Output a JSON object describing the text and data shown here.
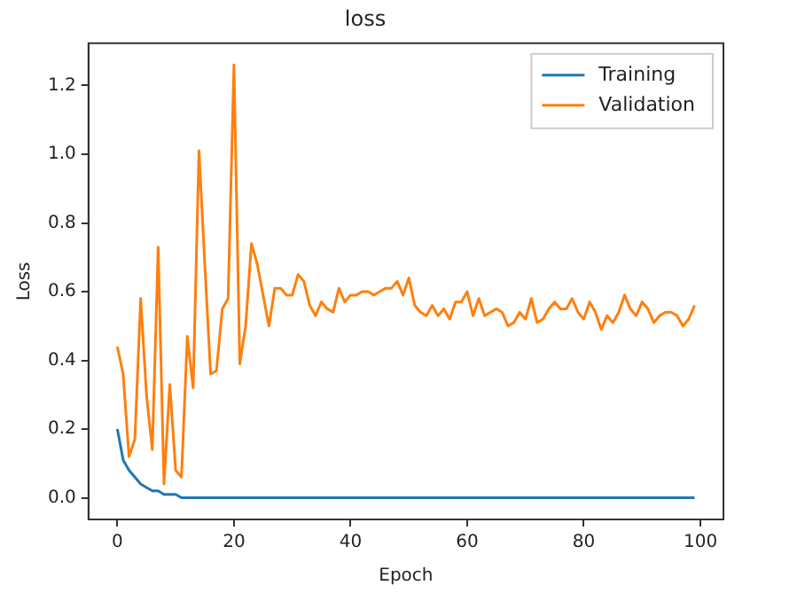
{
  "chart_data": {
    "type": "line",
    "title": "loss",
    "xlabel": "Epoch",
    "ylabel": "Loss",
    "x": [
      0,
      1,
      2,
      3,
      4,
      5,
      6,
      7,
      8,
      9,
      10,
      11,
      12,
      13,
      14,
      15,
      16,
      17,
      18,
      19,
      20,
      21,
      22,
      23,
      24,
      25,
      26,
      27,
      28,
      29,
      30,
      31,
      32,
      33,
      34,
      35,
      36,
      37,
      38,
      39,
      40,
      41,
      42,
      43,
      44,
      45,
      46,
      47,
      48,
      49,
      50,
      51,
      52,
      53,
      54,
      55,
      56,
      57,
      58,
      59,
      60,
      61,
      62,
      63,
      64,
      65,
      66,
      67,
      68,
      69,
      70,
      71,
      72,
      73,
      74,
      75,
      76,
      77,
      78,
      79,
      80,
      81,
      82,
      83,
      84,
      85,
      86,
      87,
      88,
      89,
      90,
      91,
      92,
      93,
      94,
      95,
      96,
      97,
      98,
      99
    ],
    "series": [
      {
        "name": "Training",
        "color": "#1f77b4",
        "values": [
          0.2,
          0.11,
          0.08,
          0.06,
          0.04,
          0.03,
          0.02,
          0.02,
          0.01,
          0.01,
          0.01,
          0,
          0,
          0,
          0,
          0,
          0,
          0,
          0,
          0,
          0,
          0,
          0,
          0,
          0,
          0,
          0,
          0,
          0,
          0,
          0,
          0,
          0,
          0,
          0,
          0,
          0,
          0,
          0,
          0,
          0,
          0,
          0,
          0,
          0,
          0,
          0,
          0,
          0,
          0,
          0,
          0,
          0,
          0,
          0,
          0,
          0,
          0,
          0,
          0,
          0,
          0,
          0,
          0,
          0,
          0,
          0,
          0,
          0,
          0,
          0,
          0,
          0,
          0,
          0,
          0,
          0,
          0,
          0,
          0,
          0,
          0,
          0,
          0,
          0,
          0,
          0,
          0,
          0,
          0,
          0,
          0,
          0,
          0,
          0,
          0,
          0,
          0,
          0,
          0
        ]
      },
      {
        "name": "Validation",
        "color": "#ff7f0e",
        "values": [
          0.44,
          0.36,
          0.12,
          0.17,
          0.58,
          0.3,
          0.14,
          0.73,
          0.04,
          0.33,
          0.08,
          0.06,
          0.47,
          0.32,
          1.01,
          0.68,
          0.36,
          0.37,
          0.55,
          0.58,
          1.26,
          0.39,
          0.5,
          0.74,
          0.68,
          0.59,
          0.5,
          0.61,
          0.61,
          0.59,
          0.59,
          0.65,
          0.63,
          0.56,
          0.53,
          0.57,
          0.55,
          0.54,
          0.61,
          0.57,
          0.59,
          0.59,
          0.6,
          0.6,
          0.59,
          0.6,
          0.61,
          0.61,
          0.63,
          0.59,
          0.64,
          0.56,
          0.54,
          0.53,
          0.56,
          0.53,
          0.55,
          0.52,
          0.57,
          0.57,
          0.6,
          0.53,
          0.58,
          0.53,
          0.54,
          0.55,
          0.54,
          0.5,
          0.51,
          0.54,
          0.52,
          0.58,
          0.51,
          0.52,
          0.55,
          0.57,
          0.55,
          0.55,
          0.58,
          0.54,
          0.52,
          0.57,
          0.54,
          0.49,
          0.53,
          0.51,
          0.54,
          0.59,
          0.55,
          0.53,
          0.57,
          0.55,
          0.51,
          0.53,
          0.54,
          0.54,
          0.53,
          0.5,
          0.52,
          0.56
        ]
      }
    ],
    "xlim": [
      -4.95,
      103.95
    ],
    "xticks": [
      0,
      20,
      40,
      60,
      80,
      100
    ],
    "ylim": [
      -0.063,
      1.323
    ],
    "yticks": [
      {
        "value": 0,
        "label": "0.0"
      },
      0.2,
      0.4,
      0.6,
      0.8,
      {
        "value": 1,
        "label": "1.0"
      },
      1.2
    ],
    "grid": false,
    "legend": "top right",
    "marker": "none",
    "line_style": "solid"
  }
}
